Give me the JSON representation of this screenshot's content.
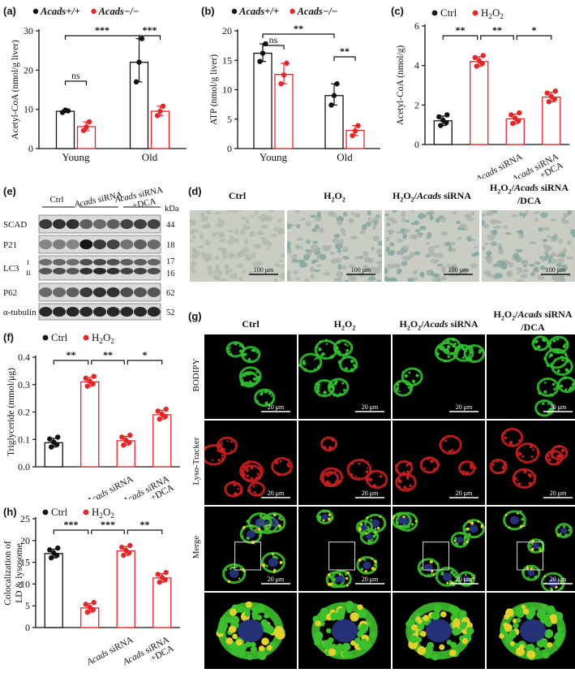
{
  "panels": {
    "a": {
      "label": "(a)",
      "legend": [
        {
          "name": "Acads+/+",
          "color": "#111111"
        },
        {
          "name": "Acads−/−",
          "color": "#e8262a"
        }
      ],
      "chart_data": {
        "type": "bar",
        "ylabel": "Acetyl-CoA (nmol/g liver)",
        "ylim": [
          0,
          30
        ],
        "yticks": [
          "0",
          "10",
          "20",
          "30"
        ],
        "groups": [
          "Young",
          "Old"
        ],
        "series": [
          {
            "name": "Acads+/+",
            "values": [
              9.5,
              22
            ],
            "points": [
              [
                9.2,
                9.8,
                9.6
              ],
              [
                17,
                22,
                28
              ]
            ]
          },
          {
            "name": "Acads−/−",
            "values": [
              5.6,
              9.5
            ],
            "points": [
              [
                4.6,
                5.5,
                6.8
              ],
              [
                8.4,
                9.5,
                10.8
              ]
            ]
          }
        ],
        "sig": [
          "ns",
          "***",
          "***"
        ]
      }
    },
    "b": {
      "label": "(b)",
      "legend": [
        {
          "name": "Acads+/+",
          "color": "#111111"
        },
        {
          "name": "Acads−/−",
          "color": "#e8262a"
        }
      ],
      "chart_data": {
        "type": "bar",
        "ylabel": "ATP (nmol/g liver)",
        "ylim": [
          0,
          20
        ],
        "yticks": [
          "0",
          "5",
          "10",
          "15",
          "20"
        ],
        "groups": [
          "Young",
          "Old"
        ],
        "series": [
          {
            "name": "Acads+/+",
            "values": [
              16.2,
              9
            ],
            "points": [
              [
                14.8,
                16.2,
                17.8
              ],
              [
                7.4,
                9,
                11
              ]
            ]
          },
          {
            "name": "Acads−/−",
            "values": [
              12.6,
              3.1
            ],
            "points": [
              [
                11,
                12.5,
                14.5
              ],
              [
                2.2,
                3,
                3.9
              ]
            ]
          }
        ],
        "sig": [
          "ns",
          "**",
          "**"
        ]
      }
    },
    "c": {
      "label": "(c)",
      "legend": [
        {
          "name": "Ctrl",
          "color": "#111111"
        },
        {
          "name": "H2O2",
          "color": "#e8262a"
        }
      ],
      "chart_data": {
        "type": "bar",
        "ylabel": "Acetyl-CoA (nmol/g)",
        "ylim": [
          0,
          6
        ],
        "yticks": [
          "0",
          "2",
          "4",
          "6"
        ],
        "categories": [
          "",
          "",
          "Acads siRNA",
          "Acads siRNA +DCA"
        ],
        "values": [
          1.2,
          4.2,
          1.3,
          2.4
        ],
        "sig": [
          "**",
          "**",
          "*"
        ]
      }
    },
    "d": {
      "label": "(d)",
      "cols": [
        "Ctrl",
        "H2O2",
        "H2O2/Acads siRNA",
        "H2O2/Acads siRNA /DCA"
      ],
      "scale": "100 μm"
    },
    "e": {
      "label": "(e)",
      "cols": [
        "Ctrl",
        "Acads siRNA",
        "Acads siRNA +DCA"
      ],
      "kda": "kDa",
      "rows": [
        {
          "name": "SCAD",
          "kda": "44"
        },
        {
          "name": "P21",
          "kda": "18"
        },
        {
          "name": "LC3",
          "sub1": "I",
          "sub2": "II",
          "kda": "17",
          "kda2": "16"
        },
        {
          "name": "P62",
          "kda": "62"
        },
        {
          "name": "α-tubulin",
          "kda": "52"
        }
      ]
    },
    "f": {
      "label": "(f)",
      "legend": [
        {
          "name": "Ctrl",
          "color": "#111111"
        },
        {
          "name": "H2O2",
          "color": "#e8262a"
        }
      ],
      "chart_data": {
        "type": "bar",
        "ylabel": "Triglyceride (mmol/μg)",
        "ylim": [
          0,
          0.4
        ],
        "yticks": [
          "0.0",
          "0.1",
          "0.2",
          "0.3",
          "0.4"
        ],
        "categories": [
          "",
          "",
          "Acads siRNA",
          "Acads siRNA +DCA"
        ],
        "values": [
          0.088,
          0.31,
          0.095,
          0.19
        ],
        "sig": [
          "**",
          "**",
          "*"
        ]
      }
    },
    "g": {
      "label": "(g)",
      "cols": [
        "Ctrl",
        "H2O2",
        "H2O2/Acads siRNA",
        "H2O2/Acads siRNA /DCA"
      ],
      "rows": [
        "BODIPY",
        "Lyso-Tracker",
        "Merge"
      ],
      "scale": "20 μm"
    },
    "h": {
      "label": "(h)",
      "legend": [
        {
          "name": "Ctrl",
          "color": "#111111"
        },
        {
          "name": "H2O2",
          "color": "#e8262a"
        }
      ],
      "chart_data": {
        "type": "bar",
        "ylabel": "Colocalization of LD & lysosome",
        "ylim": [
          0,
          25
        ],
        "yticks": [
          "0",
          "5",
          "10",
          "15",
          "20",
          "25"
        ],
        "categories": [
          "",
          "",
          "Acads siRNA",
          "Acads siRNA +DCA"
        ],
        "values": [
          17,
          4.5,
          17.6,
          11.4
        ],
        "sig": [
          "***",
          "***",
          "**"
        ]
      }
    }
  }
}
